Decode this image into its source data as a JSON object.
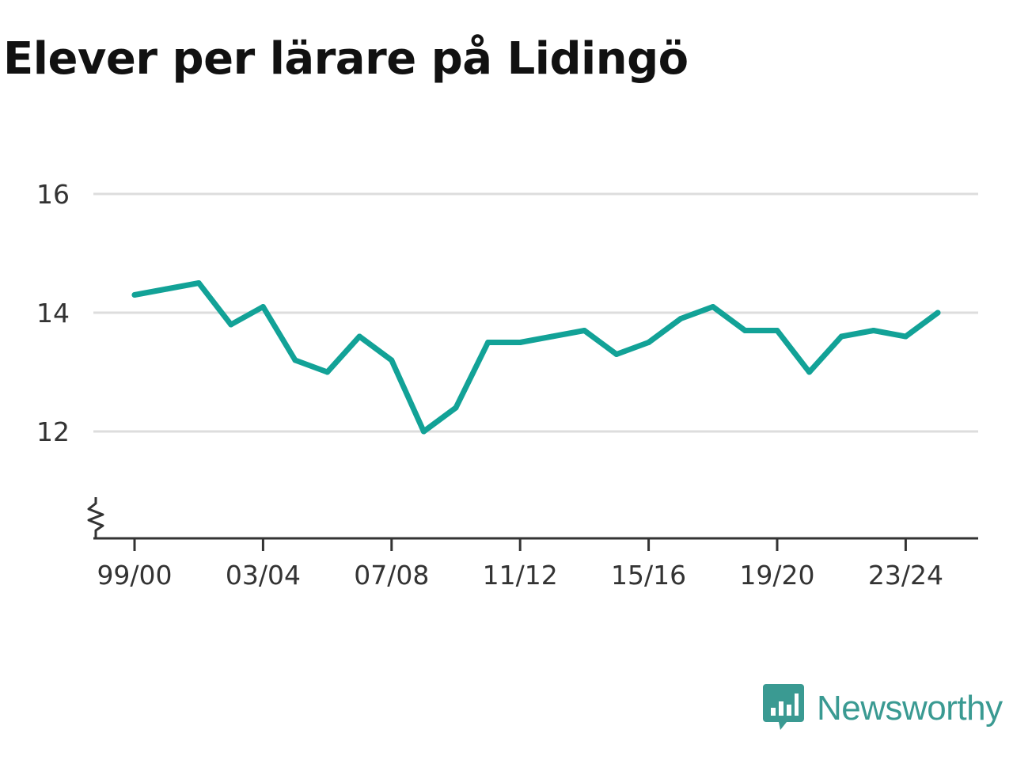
{
  "title": "Elever per lärare på Lidingö",
  "brand": {
    "name": "Newsworthy",
    "icon": "bar-chart-bubble-icon",
    "color": "#3a9a92"
  },
  "colors": {
    "line": "#12a297",
    "grid": "#dddddd",
    "axis": "#333333"
  },
  "chart_data": {
    "type": "line",
    "title": "Elever per lärare på Lidingö",
    "xlabel": "",
    "ylabel": "",
    "ylim": [
      10.2,
      16
    ],
    "yticks": [
      12,
      14,
      16
    ],
    "axis_break": true,
    "grid": true,
    "categories": [
      "99/00",
      "00/01",
      "01/02",
      "02/03",
      "03/04",
      "04/05",
      "05/06",
      "06/07",
      "07/08",
      "08/09",
      "09/10",
      "10/11",
      "11/12",
      "12/13",
      "13/14",
      "14/15",
      "15/16",
      "16/17",
      "17/18",
      "18/19",
      "19/20",
      "20/21",
      "21/22",
      "22/23",
      "23/24",
      "24/25"
    ],
    "xtick_labels": [
      "99/00",
      "03/04",
      "07/08",
      "11/12",
      "15/16",
      "19/20",
      "23/24"
    ],
    "series": [
      {
        "values": [
          14.3,
          14.4,
          14.5,
          13.8,
          14.1,
          13.2,
          13.0,
          13.6,
          13.2,
          12.0,
          12.4,
          13.5,
          13.5,
          13.6,
          13.7,
          13.3,
          13.5,
          13.9,
          14.1,
          13.7,
          13.7,
          13.0,
          13.6,
          13.7,
          13.6,
          14.0
        ]
      }
    ]
  }
}
